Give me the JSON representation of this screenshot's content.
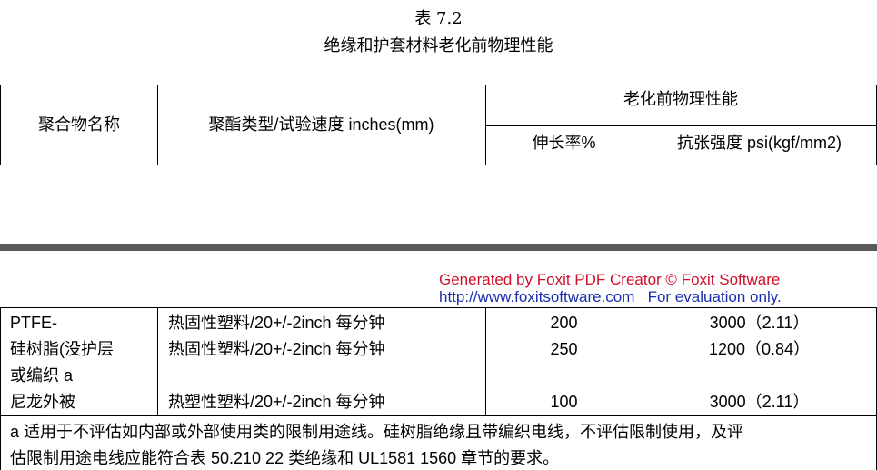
{
  "caption": {
    "number": "表 7.2",
    "title": "绝缘和护套材料老化前物理性能"
  },
  "header": {
    "col1": "聚合物名称",
    "col2": "聚酯类型/试验速度 inches(mm)",
    "group": "老化前物理性能",
    "col3": "伸长率%",
    "col4": "抗张强度 psi(kgf/mm2)"
  },
  "watermark": {
    "line1": "Generated by Foxit PDF Creator © Foxit Software",
    "url": "http://www.foxitsoftware.com",
    "note": "For evaluation only.",
    "colors": {
      "line1": "#d0102a",
      "line2": "#1a2fb0"
    }
  },
  "rows": [
    {
      "name": "PTFE-",
      "type": "热固性塑料/20+/-2inch 每分钟",
      "elong": "200",
      "tensile": "3000（2.11）"
    },
    {
      "name": "硅树脂(没护层",
      "type": "热固性塑料/20+/-2inch 每分钟",
      "elong": "250",
      "tensile": "1200（0.84）"
    },
    {
      "name": "或编织 a",
      "type": "",
      "elong": "",
      "tensile": ""
    },
    {
      "name": "尼龙外被",
      "type": "热塑性塑料/20+/-2inch 每分钟",
      "elong": "100",
      "tensile": "3000（2.11）"
    }
  ],
  "footnote": {
    "line1": "a 适用于不评估如内部或外部使用类的限制用途线。硅树脂绝缘且带编织电线，不评估限制使用，及评",
    "line2": "估限制用途电线应能符合表 50.210 22 类绝缘和 UL1581 1560 章节的要求。"
  }
}
